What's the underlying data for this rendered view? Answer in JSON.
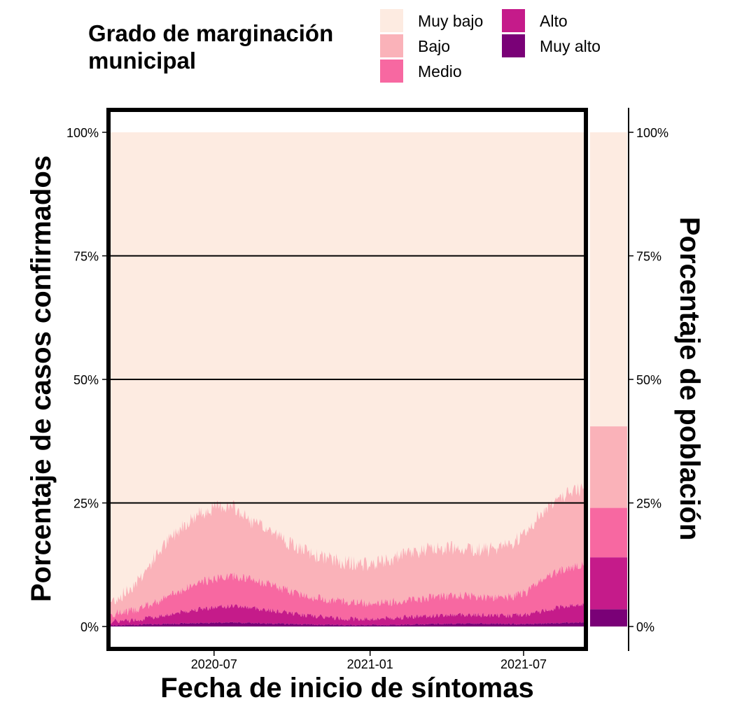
{
  "legend": {
    "title_line1": "Grado de marginación",
    "title_line2": "municipal",
    "items": [
      {
        "label": "Muy bajo",
        "color": "#FDEBE1"
      },
      {
        "label": "Bajo",
        "color": "#FAB2B9"
      },
      {
        "label": "Medio",
        "color": "#F768A1"
      },
      {
        "label": "Alto",
        "color": "#C51B8A"
      },
      {
        "label": "Muy alto",
        "color": "#7A0177"
      }
    ]
  },
  "chart_data": {
    "type": "area",
    "stacked": true,
    "xlabel": "Fecha de inicio de síntomas",
    "ylabel": "Porcentaje de casos confirmados",
    "ylabel_right": "Porcentaje de población",
    "x_ticks": [
      "2020-07",
      "2021-01",
      "2021-07"
    ],
    "y_ticks": [
      "0%",
      "25%",
      "50%",
      "75%",
      "100%"
    ],
    "ylim": [
      0,
      100
    ],
    "x_range": [
      "2020-03-01",
      "2021-09-10"
    ],
    "grid_lines_y": [
      25,
      50,
      75
    ],
    "cumulative_boundaries": {
      "description_keys": [
        "date",
        "muy_alto",
        "alto",
        "medio",
        "bajo"
      ],
      "points": [
        [
          "2020-03-01",
          0.2,
          1.0,
          2.5,
          5.0
        ],
        [
          "2020-03-20",
          0.3,
          1.2,
          3.0,
          7.0
        ],
        [
          "2020-04-10",
          0.4,
          1.6,
          4.0,
          11.0
        ],
        [
          "2020-05-01",
          0.5,
          2.2,
          5.5,
          16.0
        ],
        [
          "2020-05-25",
          0.6,
          3.0,
          7.5,
          20.5
        ],
        [
          "2020-06-15",
          0.7,
          3.6,
          9.0,
          23.0
        ],
        [
          "2020-07-10",
          0.8,
          4.0,
          10.0,
          24.5
        ],
        [
          "2020-07-25",
          0.8,
          4.2,
          10.2,
          24.0
        ],
        [
          "2020-08-15",
          0.7,
          3.8,
          9.5,
          21.0
        ],
        [
          "2020-09-05",
          0.6,
          3.3,
          8.5,
          19.5
        ],
        [
          "2020-10-01",
          0.5,
          2.7,
          7.0,
          16.5
        ],
        [
          "2020-10-25",
          0.4,
          2.1,
          6.0,
          14.5
        ],
        [
          "2020-12-01",
          0.3,
          1.6,
          5.0,
          13.0
        ],
        [
          "2021-01-01",
          0.3,
          1.5,
          4.8,
          12.5
        ],
        [
          "2021-01-25",
          0.3,
          1.7,
          5.0,
          13.5
        ],
        [
          "2021-02-20",
          0.4,
          2.0,
          5.5,
          15.0
        ],
        [
          "2021-03-20",
          0.5,
          2.2,
          6.0,
          15.8
        ],
        [
          "2021-04-20",
          0.6,
          2.4,
          6.3,
          16.0
        ],
        [
          "2021-05-20",
          0.6,
          2.3,
          6.0,
          15.5
        ],
        [
          "2021-06-15",
          0.5,
          2.2,
          6.0,
          16.5
        ],
        [
          "2021-07-05",
          0.5,
          2.4,
          7.0,
          19.5
        ],
        [
          "2021-07-25",
          0.6,
          3.2,
          9.5,
          23.5
        ],
        [
          "2021-08-15",
          0.7,
          4.0,
          11.5,
          26.5
        ],
        [
          "2021-09-10",
          0.8,
          4.5,
          12.5,
          28.0
        ]
      ]
    },
    "population_bar": {
      "segments": [
        {
          "category": "Muy alto",
          "value": 3.5
        },
        {
          "category": "Alto",
          "value": 10.5
        },
        {
          "category": "Medio",
          "value": 10.0
        },
        {
          "category": "Bajo",
          "value": 16.5
        },
        {
          "category": "Muy bajo",
          "value": 59.5
        }
      ]
    }
  }
}
